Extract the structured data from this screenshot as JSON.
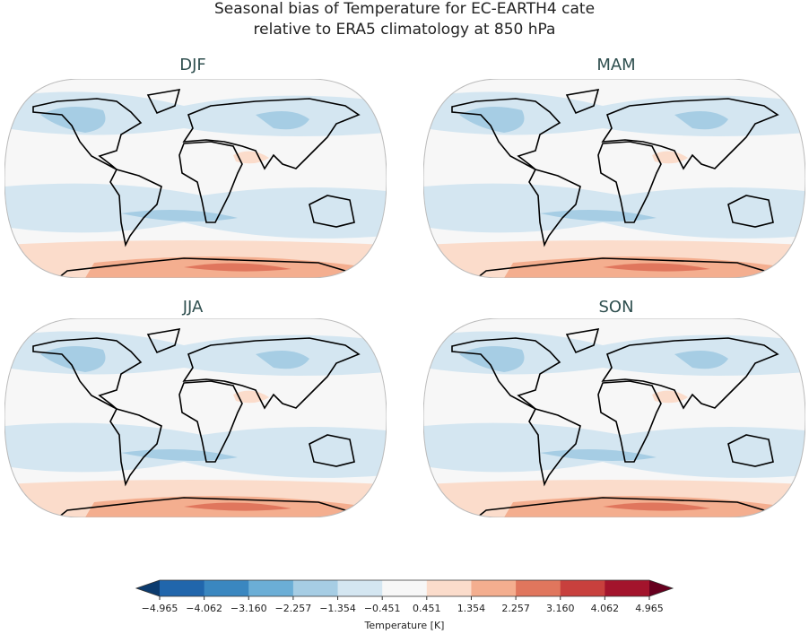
{
  "title": [
    "Seasonal bias of Temperature for EC-EARTH4 cate",
    "relative to ERA5 climatology at 850 hPa"
  ],
  "panels": [
    "DJF",
    "MAM",
    "JJA",
    "SON"
  ],
  "colorbar": {
    "ticks": [
      {
        "value": -4.965,
        "label": "−4.965"
      },
      {
        "value": -4.062,
        "label": "−4.062"
      },
      {
        "value": -3.16,
        "label": "−3.160"
      },
      {
        "value": -2.257,
        "label": "−2.257"
      },
      {
        "value": -1.354,
        "label": "−1.354"
      },
      {
        "value": -0.451,
        "label": "−0.451"
      },
      0.451,
      1.354,
      2.257,
      {
        "value": 3.16,
        "label": "3.160"
      },
      4.062,
      4.965
    ],
    "colors": [
      "#2166ac",
      "#3a87c0",
      "#6baed6",
      "#a6cde4",
      "#d4e6f1",
      "#f7f7f7",
      "#fbdccb",
      "#f4ae8f",
      "#e0765d",
      "#c8403d",
      "#a3142c"
    ],
    "extend_colors": [
      "#0c3b6e",
      "#67001f"
    ],
    "label": "Temperature [K]"
  }
}
